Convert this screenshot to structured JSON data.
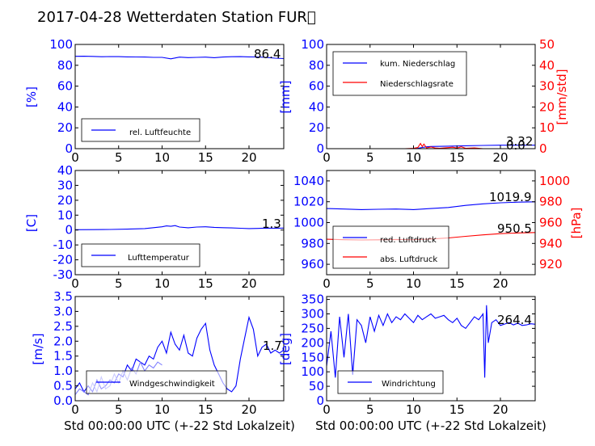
{
  "title": "2017-04-28 Wetterdaten Station FUR\u0000",
  "colors": {
    "blue": "#0000ff",
    "red": "#ff0000",
    "lightblue": "#8080ff"
  },
  "chart_data": [
    {
      "id": "humidity",
      "type": "line",
      "xlim": [
        0,
        24
      ],
      "ylim": [
        0,
        100
      ],
      "xticks": [
        "0",
        "5",
        "10",
        "15",
        "20"
      ],
      "yticks": [
        "0",
        "20",
        "40",
        "60",
        "80",
        "100"
      ],
      "ylabel": "[%]",
      "value_label": "86.4",
      "legend": [
        "rel. Luftfeuchte"
      ],
      "series": [
        {
          "name": "rel. Luftfeuchte",
          "color": "#0000ff",
          "x": [
            0,
            1,
            2,
            3,
            4,
            5,
            6,
            7,
            8,
            9,
            10,
            11,
            12,
            13,
            14,
            15,
            16,
            17,
            18,
            19,
            20,
            21,
            22,
            23,
            24
          ],
          "y": [
            88.6,
            88.7,
            88.5,
            88.2,
            88.4,
            88.3,
            88.1,
            88.0,
            87.9,
            87.6,
            87.6,
            86.2,
            87.8,
            87.4,
            87.6,
            87.8,
            87.3,
            87.9,
            88.2,
            88.3,
            88.1,
            88.0,
            87.5,
            86.8,
            86.4
          ]
        }
      ]
    },
    {
      "id": "precip",
      "type": "line",
      "xlim": [
        0,
        24
      ],
      "ylim": [
        0,
        100
      ],
      "y2lim": [
        0,
        50
      ],
      "xticks": [
        "0",
        "5",
        "10",
        "15",
        "20"
      ],
      "yticks": [
        "0",
        "20",
        "40",
        "60",
        "80",
        "100"
      ],
      "y2ticks": [
        "0",
        "10",
        "20",
        "30",
        "40",
        "50"
      ],
      "ylabel": "[mm]",
      "y2label": "[mm/std]",
      "value_labels": [
        "3.32",
        "0.0"
      ],
      "legend": [
        "kum. Niederschlag",
        "Niederschlagsrate"
      ],
      "series": [
        {
          "name": "kum. Niederschlag",
          "color": "#0000ff",
          "axis": "left",
          "x": [
            0,
            2,
            4,
            6,
            8,
            10,
            10.5,
            11,
            11.5,
            12,
            14,
            16,
            18,
            20,
            22,
            24
          ],
          "y": [
            0,
            0,
            0,
            0,
            0,
            0,
            0.3,
            1.2,
            1.8,
            2.1,
            2.4,
            2.8,
            3.1,
            3.3,
            3.32,
            3.32
          ]
        },
        {
          "name": "Niederschlagsrate",
          "color": "#ff0000",
          "axis": "right",
          "x": [
            0,
            9,
            10,
            10.5,
            10.8,
            11,
            11.2,
            11.5,
            12,
            12.5,
            13,
            14,
            14.5,
            15,
            15.5,
            16,
            17,
            18,
            20,
            24
          ],
          "y": [
            0,
            0,
            0.2,
            0.6,
            2.5,
            1.0,
            2.2,
            0.4,
            0.8,
            0.3,
            0.2,
            0.5,
            0.7,
            0.3,
            0.9,
            0.2,
            0.4,
            0,
            0,
            0
          ]
        }
      ]
    },
    {
      "id": "temperature",
      "type": "line",
      "xlim": [
        0,
        24
      ],
      "ylim": [
        -30,
        40
      ],
      "xticks": [
        "0",
        "5",
        "10",
        "15",
        "20"
      ],
      "yticks": [
        "-30",
        "-20",
        "-10",
        "0",
        "10",
        "20",
        "30",
        "40"
      ],
      "ylabel": "[C]",
      "value_label": "1.3",
      "legend": [
        "Lufttemperatur"
      ],
      "series": [
        {
          "name": "Lufttemperatur",
          "color": "#0000ff",
          "x": [
            0,
            2,
            4,
            6,
            8,
            9,
            10,
            10.5,
            11,
            11.5,
            12,
            13,
            14,
            15,
            16,
            17,
            18,
            19,
            20,
            21,
            22,
            23,
            24
          ],
          "y": [
            0.2,
            0.3,
            0.4,
            0.6,
            1.0,
            1.6,
            2.2,
            2.8,
            2.5,
            3.0,
            2.0,
            1.5,
            2.0,
            2.2,
            1.8,
            1.6,
            1.4,
            1.2,
            1.0,
            1.1,
            1.3,
            1.2,
            1.3
          ]
        }
      ]
    },
    {
      "id": "pressure",
      "type": "line",
      "xlim": [
        0,
        24
      ],
      "ylim": [
        950,
        1050
      ],
      "y2lim": [
        910,
        1010
      ],
      "xticks": [
        "0",
        "5",
        "10",
        "15",
        "20"
      ],
      "yticks": [
        "960",
        "980",
        "1000",
        "1020",
        "1040"
      ],
      "y2ticks": [
        "920",
        "940",
        "960",
        "980",
        "1000"
      ],
      "ylabel": "[hPa]",
      "y2label": "[hPa]",
      "value_labels": [
        "1019.9",
        "950.5"
      ],
      "legend": [
        "red. Luftdruck",
        "abs. Luftdruck"
      ],
      "series": [
        {
          "name": "red. Luftdruck",
          "color": "#0000ff",
          "axis": "left",
          "x": [
            0,
            2,
            4,
            6,
            8,
            10,
            12,
            14,
            16,
            18,
            20,
            22,
            24
          ],
          "y": [
            1013.5,
            1013.0,
            1012.5,
            1012.8,
            1013.0,
            1012.5,
            1013.5,
            1014.5,
            1016.5,
            1018.0,
            1019.0,
            1019.6,
            1019.9
          ]
        },
        {
          "name": "abs. Luftdruck",
          "color": "#ff0000",
          "axis": "right",
          "x": [
            0,
            2,
            4,
            6,
            8,
            10,
            12,
            14,
            16,
            18,
            20,
            22,
            24
          ],
          "y": [
            944.0,
            943.6,
            943.3,
            943.5,
            943.8,
            943.6,
            944.3,
            945.3,
            946.8,
            948.2,
            949.4,
            950.1,
            950.5
          ]
        }
      ]
    },
    {
      "id": "windspeed",
      "type": "line",
      "xlim": [
        0,
        24
      ],
      "ylim": [
        0,
        3.5
      ],
      "xticks": [
        "0",
        "5",
        "10",
        "15",
        "20"
      ],
      "yticks": [
        "0.0",
        "0.5",
        "1.0",
        "1.5",
        "2.0",
        "2.5",
        "3.0",
        "3.5"
      ],
      "ylabel": "[m/s]",
      "value_label": "1.7",
      "legend": [
        "Windgeschwindigkeit"
      ],
      "series": [
        {
          "name": "Windgeschwindigkeit",
          "color": "#0000ff",
          "x": [
            0,
            0.5,
            1,
            1.5,
            2,
            2.5,
            3,
            3.5,
            4,
            4.5,
            5,
            5.5,
            6,
            6.5,
            7,
            7.5,
            8,
            8.5,
            9,
            9.5,
            10,
            10.5,
            11,
            11.5,
            12,
            12.5,
            13,
            13.5,
            14,
            14.5,
            15,
            15.5,
            16,
            16.5,
            17,
            17.5,
            18,
            18.5,
            19,
            19.5,
            20,
            20.5,
            21,
            21.5,
            22,
            22.5,
            23,
            23.5,
            24
          ],
          "y": [
            0.4,
            0.6,
            0.3,
            0.5,
            0.3,
            0.7,
            0.4,
            0.5,
            0.7,
            0.6,
            0.9,
            0.8,
            1.2,
            1.0,
            1.4,
            1.3,
            1.2,
            1.5,
            1.4,
            1.8,
            2.0,
            1.6,
            2.3,
            1.9,
            1.7,
            2.2,
            1.6,
            1.5,
            2.1,
            2.4,
            2.6,
            1.7,
            1.2,
            0.9,
            0.6,
            0.4,
            0.3,
            0.5,
            1.4,
            2.1,
            2.8,
            2.4,
            1.5,
            1.8,
            1.9,
            1.6,
            1.7,
            1.6,
            1.7
          ]
        },
        {
          "name": "",
          "color": "#8080ff",
          "x": [
            0,
            0.5,
            1,
            1.5,
            2,
            2.5,
            3,
            3.5,
            4,
            4.5,
            5,
            5.5,
            6,
            6.5,
            7,
            7.5,
            8,
            8.5,
            9,
            9.5,
            10
          ],
          "y": [
            0.2,
            0.4,
            0.3,
            0.2,
            0.6,
            0.3,
            0.8,
            0.4,
            0.5,
            0.9,
            0.6,
            1.0,
            0.7,
            1.1,
            0.9,
            1.3,
            1.0,
            1.2,
            1.1,
            1.3,
            1.2
          ]
        }
      ]
    },
    {
      "id": "winddir",
      "type": "line",
      "xlim": [
        0,
        24
      ],
      "ylim": [
        0,
        360
      ],
      "xticks": [
        "0",
        "5",
        "10",
        "15",
        "20"
      ],
      "yticks": [
        "0",
        "50",
        "100",
        "150",
        "200",
        "250",
        "300",
        "350"
      ],
      "ylabel": "[deg]",
      "value_label": "264.4",
      "legend": [
        "Windrichtung"
      ],
      "series": [
        {
          "name": "Windrichtung",
          "color": "#0000ff",
          "x": [
            0,
            0.5,
            1,
            1.5,
            2,
            2.5,
            3,
            3.5,
            4,
            4.5,
            5,
            5.5,
            6,
            6.5,
            7,
            7.5,
            8,
            8.5,
            9,
            9.5,
            10,
            10.5,
            11,
            11.5,
            12,
            12.5,
            13,
            13.5,
            14,
            14.5,
            15,
            15.5,
            16,
            16.5,
            17,
            17.5,
            18,
            18.2,
            18.4,
            18.6,
            19,
            19.5,
            20,
            20.5,
            21,
            21.5,
            22,
            22.5,
            23,
            23.5,
            24
          ],
          "y": [
            120,
            240,
            80,
            290,
            150,
            300,
            90,
            280,
            260,
            200,
            290,
            240,
            295,
            260,
            300,
            270,
            290,
            280,
            300,
            285,
            270,
            295,
            280,
            290,
            300,
            285,
            290,
            295,
            280,
            270,
            285,
            260,
            250,
            270,
            290,
            280,
            300,
            80,
            330,
            200,
            270,
            280,
            260,
            265,
            270,
            262,
            268,
            260,
            262,
            266,
            264.4
          ]
        }
      ]
    }
  ],
  "xlabels": [
    "Std 00:00:00 UTC (+-22 Std Lokalzeit)",
    "Std 00:00:00 UTC (+-22 Std Lokalzeit)"
  ]
}
